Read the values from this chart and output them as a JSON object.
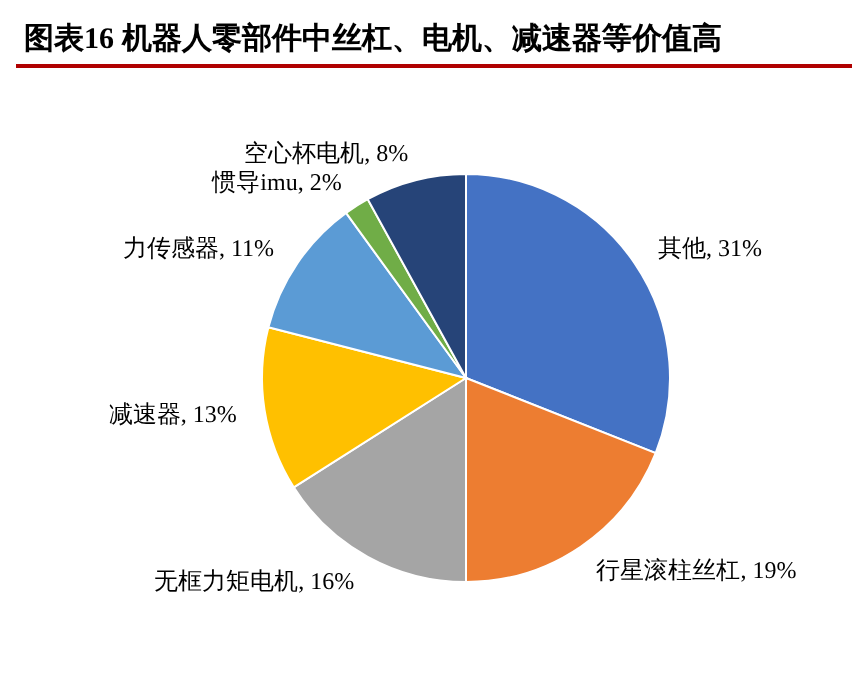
{
  "chart_data": {
    "type": "pie",
    "title": "图表16 机器人零部件中丝杠、电机、减速器等价值高",
    "categories": [
      "其他",
      "行星滚柱丝杠",
      "无框力矩电机",
      "减速器",
      "力传感器",
      "惯导imu",
      "空心杯电机"
    ],
    "values": [
      31,
      19,
      16,
      13,
      11,
      2,
      8
    ],
    "value_labels": [
      "31%",
      "19%",
      "16%",
      "13%",
      "11%",
      "2%",
      "8%"
    ],
    "colors": [
      "#4472c4",
      "#ed7d31",
      "#a5a5a5",
      "#ffc000",
      "#5b9bd5",
      "#70ad47",
      "#264478"
    ],
    "legend": false
  }
}
